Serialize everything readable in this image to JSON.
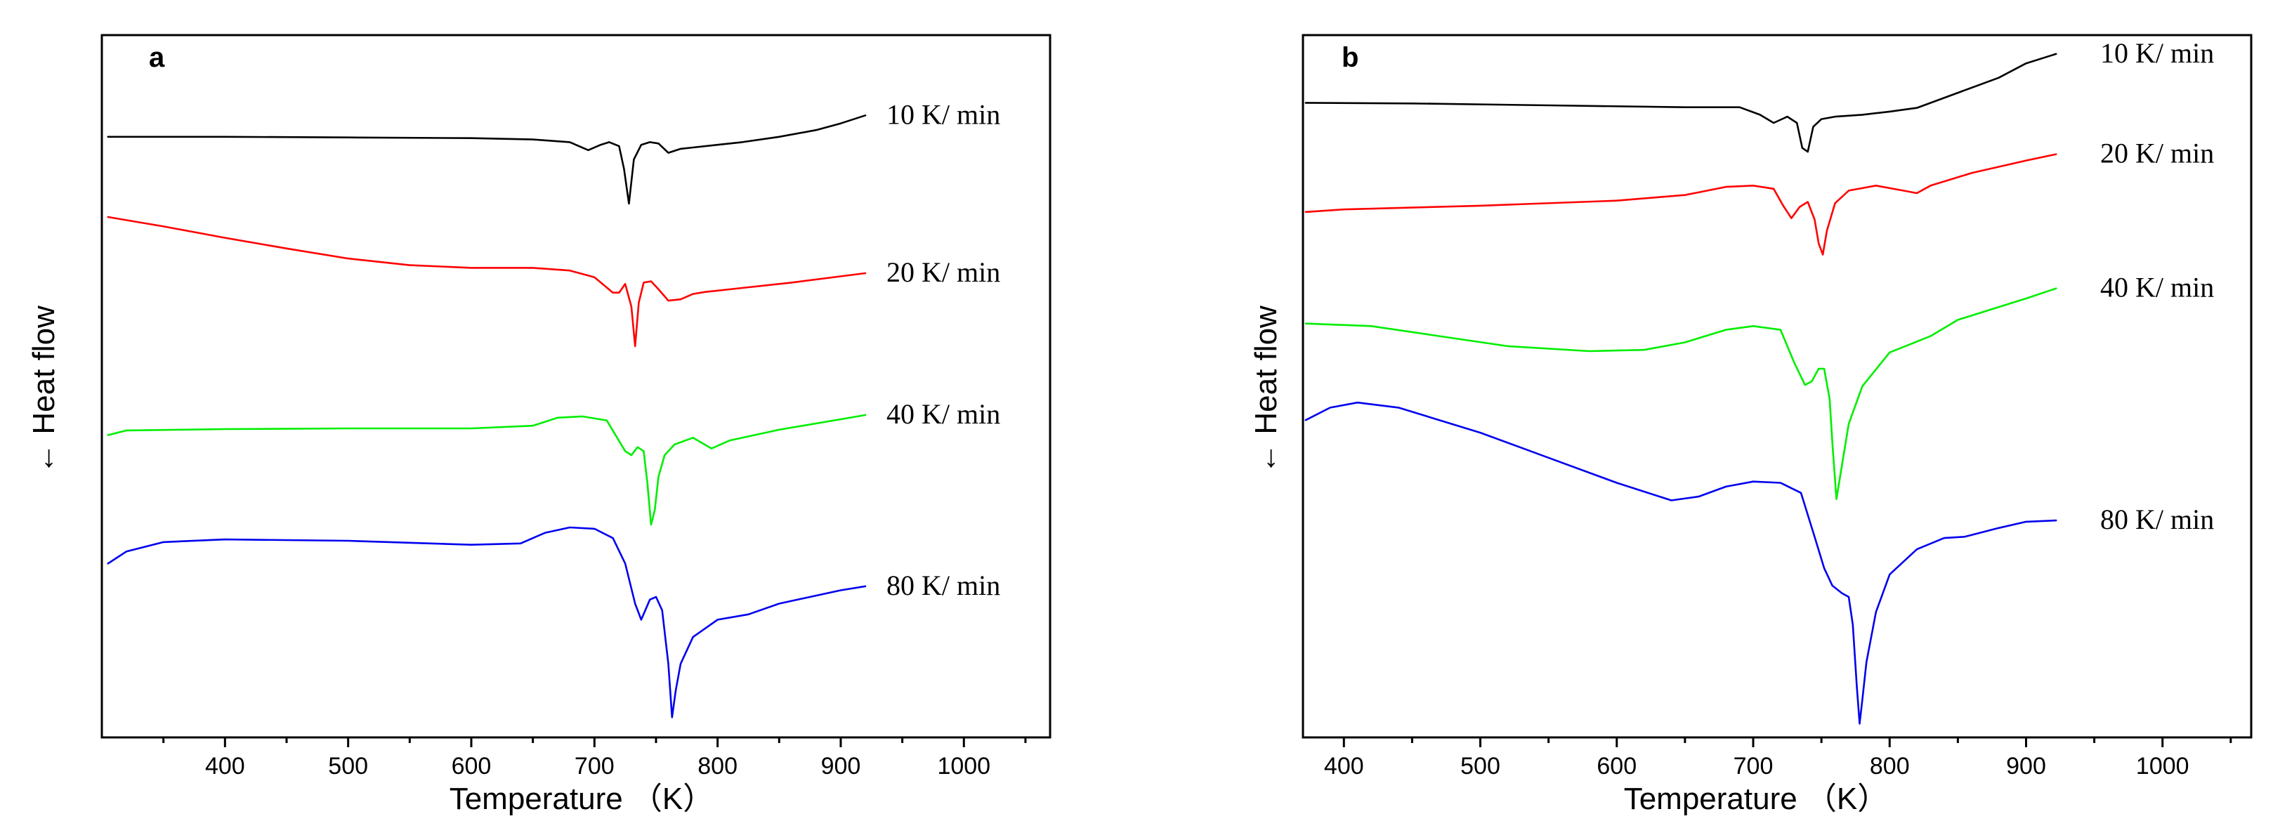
{
  "chart_data": [
    {
      "type": "line",
      "panel_label": "a",
      "xlabel": "Temperature （K）",
      "ylabel": "← Heat flow",
      "xlim": [
        300,
        1070
      ],
      "xticks": [
        400,
        500,
        600,
        700,
        800,
        900,
        1000
      ],
      "grid": false,
      "series": [
        {
          "name": "10 K/ min",
          "color": "#000000",
          "x": [
            305,
            400,
            500,
            600,
            650,
            680,
            695,
            705,
            712,
            720,
            724,
            728,
            732,
            738,
            745,
            752,
            760,
            770,
            780,
            800,
            820,
            850,
            880,
            900,
            920
          ],
          "y": [
            0.848,
            0.848,
            0.847,
            0.846,
            0.844,
            0.84,
            0.828,
            0.836,
            0.84,
            0.834,
            0.8,
            0.748,
            0.814,
            0.836,
            0.84,
            0.838,
            0.824,
            0.83,
            0.832,
            0.836,
            0.84,
            0.848,
            0.858,
            0.868,
            0.88
          ]
        },
        {
          "name": "20 K/ min",
          "color": "#ff0000",
          "x": [
            305,
            350,
            400,
            450,
            500,
            550,
            600,
            650,
            680,
            700,
            715,
            720,
            725,
            730,
            733,
            736,
            740,
            746,
            752,
            760,
            770,
            780,
            790,
            820,
            860,
            920
          ],
          "y": [
            0.728,
            0.714,
            0.697,
            0.681,
            0.666,
            0.656,
            0.652,
            0.652,
            0.648,
            0.638,
            0.615,
            0.615,
            0.628,
            0.594,
            0.535,
            0.6,
            0.63,
            0.632,
            0.62,
            0.603,
            0.605,
            0.613,
            0.616,
            0.622,
            0.63,
            0.644
          ]
        },
        {
          "name": "40 K/ min",
          "color": "#00ee00",
          "x": [
            305,
            320,
            400,
            500,
            600,
            650,
            670,
            690,
            710,
            725,
            730,
            735,
            740,
            743,
            746,
            749,
            752,
            757,
            765,
            780,
            795,
            810,
            850,
            920
          ],
          "y": [
            0.402,
            0.409,
            0.411,
            0.412,
            0.412,
            0.416,
            0.428,
            0.43,
            0.424,
            0.378,
            0.372,
            0.384,
            0.378,
            0.33,
            0.268,
            0.29,
            0.34,
            0.372,
            0.388,
            0.398,
            0.382,
            0.394,
            0.41,
            0.432
          ]
        },
        {
          "name": "80 K/ min",
          "color": "#0000ee",
          "x": [
            305,
            320,
            350,
            400,
            500,
            600,
            640,
            660,
            680,
            700,
            715,
            725,
            733,
            738,
            745,
            750,
            755,
            760,
            763,
            766,
            770,
            780,
            800,
            825,
            850,
            900,
            920
          ],
          "y": [
            0.21,
            0.228,
            0.242,
            0.246,
            0.244,
            0.238,
            0.24,
            0.256,
            0.264,
            0.262,
            0.248,
            0.21,
            0.15,
            0.126,
            0.156,
            0.16,
            0.14,
            0.06,
            -0.02,
            0.02,
            0.06,
            0.1,
            0.126,
            0.134,
            0.15,
            0.17,
            0.176
          ]
        }
      ]
    },
    {
      "type": "line",
      "panel_label": "b",
      "xlabel": "Temperature （K）",
      "ylabel": "← Heat flow",
      "xlim": [
        370,
        1065
      ],
      "xticks": [
        400,
        500,
        600,
        700,
        800,
        900,
        1000
      ],
      "grid": false,
      "series": [
        {
          "name": "10 K/ min",
          "color": "#000000",
          "x": [
            372,
            450,
            550,
            650,
            690,
            705,
            715,
            725,
            732,
            736,
            740,
            744,
            750,
            760,
            780,
            800,
            820,
            850,
            880,
            900,
            922
          ],
          "y": [
            0.892,
            0.891,
            0.888,
            0.885,
            0.885,
            0.873,
            0.86,
            0.87,
            0.86,
            0.82,
            0.814,
            0.854,
            0.866,
            0.87,
            0.873,
            0.878,
            0.884,
            0.908,
            0.932,
            0.955,
            0.97
          ]
        },
        {
          "name": "20 K/ min",
          "color": "#ff0000",
          "x": [
            372,
            400,
            500,
            600,
            650,
            680,
            700,
            715,
            722,
            728,
            734,
            740,
            745,
            748,
            751,
            754,
            760,
            770,
            790,
            810,
            820,
            830,
            860,
            900,
            922
          ],
          "y": [
            0.718,
            0.722,
            0.728,
            0.736,
            0.745,
            0.758,
            0.76,
            0.755,
            0.728,
            0.708,
            0.726,
            0.734,
            0.706,
            0.668,
            0.65,
            0.688,
            0.732,
            0.752,
            0.76,
            0.752,
            0.748,
            0.76,
            0.78,
            0.8,
            0.81
          ]
        },
        {
          "name": "40 K/ min",
          "color": "#00ee00",
          "x": [
            372,
            420,
            470,
            520,
            580,
            620,
            650,
            680,
            700,
            720,
            730,
            738,
            743,
            748,
            752,
            756,
            758,
            761,
            764,
            770,
            780,
            800,
            830,
            850,
            900,
            922
          ],
          "y": [
            0.54,
            0.536,
            0.52,
            0.504,
            0.496,
            0.498,
            0.51,
            0.53,
            0.536,
            0.53,
            0.478,
            0.442,
            0.448,
            0.468,
            0.468,
            0.42,
            0.35,
            0.26,
            0.3,
            0.38,
            0.44,
            0.494,
            0.52,
            0.546,
            0.58,
            0.596
          ]
        },
        {
          "name": "80 K/ min",
          "color": "#0000ee",
          "x": [
            372,
            390,
            410,
            440,
            500,
            550,
            600,
            640,
            660,
            680,
            700,
            720,
            735,
            745,
            752,
            758,
            765,
            770,
            773,
            776,
            778,
            780,
            783,
            790,
            800,
            820,
            840,
            855,
            880,
            900,
            922
          ],
          "y": [
            0.386,
            0.406,
            0.414,
            0.406,
            0.366,
            0.326,
            0.286,
            0.258,
            0.264,
            0.28,
            0.288,
            0.286,
            0.27,
            0.2,
            0.15,
            0.122,
            0.11,
            0.104,
            0.06,
            -0.04,
            -0.098,
            -0.06,
            0.0,
            0.08,
            0.14,
            0.18,
            0.198,
            0.2,
            0.214,
            0.224,
            0.226
          ]
        }
      ]
    }
  ]
}
